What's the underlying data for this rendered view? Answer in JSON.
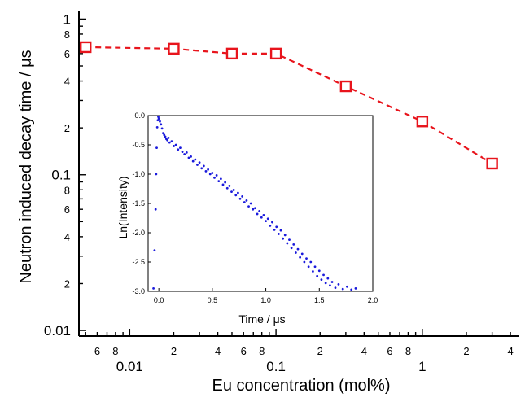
{
  "chart_data": [
    {
      "type": "line",
      "xlabel": "Eu concentration (mol%)",
      "ylabel": "Neutron induced decay time / μs",
      "xscale": "log",
      "yscale": "log",
      "xlim": [
        0.0045,
        4.6
      ],
      "ylim": [
        0.0092,
        1.12
      ],
      "x_major_ticks": [
        {
          "value": 0.01,
          "label": "0.01"
        },
        {
          "value": 0.1,
          "label": "0.1"
        },
        {
          "value": 1,
          "label": "1"
        }
      ],
      "x_minor_ticks": [
        {
          "value": 0.006,
          "label": "6"
        },
        {
          "value": 0.008,
          "label": "8"
        },
        {
          "value": 0.02,
          "label": "2"
        },
        {
          "value": 0.04,
          "label": "4"
        },
        {
          "value": 0.06,
          "label": "6"
        },
        {
          "value": 0.08,
          "label": "8"
        },
        {
          "value": 0.2,
          "label": "2"
        },
        {
          "value": 0.4,
          "label": "4"
        },
        {
          "value": 0.6,
          "label": "6"
        },
        {
          "value": 0.8,
          "label": "8"
        },
        {
          "value": 2,
          "label": "2"
        },
        {
          "value": 4,
          "label": "4"
        }
      ],
      "y_major_ticks": [
        {
          "value": 0.01,
          "label": "0.01"
        },
        {
          "value": 0.1,
          "label": "0.1"
        },
        {
          "value": 1,
          "label": "1"
        }
      ],
      "y_minor_ticks": [
        {
          "value": 0.02,
          "label": "2"
        },
        {
          "value": 0.04,
          "label": "4"
        },
        {
          "value": 0.06,
          "label": "6"
        },
        {
          "value": 0.08,
          "label": "8"
        },
        {
          "value": 0.2,
          "label": "2"
        },
        {
          "value": 0.4,
          "label": "4"
        },
        {
          "value": 0.6,
          "label": "6"
        },
        {
          "value": 0.8,
          "label": "8"
        }
      ],
      "series": [
        {
          "x": [
            0.005,
            0.02,
            0.05,
            0.1,
            0.3,
            1.0,
            3.0
          ],
          "y": [
            0.66,
            0.645,
            0.6,
            0.6,
            0.37,
            0.22,
            0.118
          ],
          "color": "#e8141c",
          "marker": "square-open",
          "line": "dashed"
        }
      ],
      "grid": false
    },
    {
      "type": "scatter",
      "inset": true,
      "xlabel": "Time / μs",
      "ylabel": "Ln(Intensity)",
      "xlim": [
        -0.1,
        2.0
      ],
      "ylim": [
        -3.0,
        0.0
      ],
      "x_ticks": [
        {
          "value": 0,
          "label": "0.0"
        },
        {
          "value": 0.5,
          "label": "0.5"
        },
        {
          "value": 1,
          "label": "1.0"
        },
        {
          "value": 1.5,
          "label": "1.5"
        },
        {
          "value": 2,
          "label": "2.0"
        }
      ],
      "y_ticks": [
        {
          "value": 0,
          "label": "0.0"
        },
        {
          "value": -0.5,
          "label": "-0.5"
        },
        {
          "value": -1,
          "label": "-1.0"
        },
        {
          "value": -1.5,
          "label": "-1.5"
        },
        {
          "value": -2,
          "label": "-2.0"
        },
        {
          "value": -2.5,
          "label": "-2.5"
        },
        {
          "value": -3,
          "label": "-3.0"
        }
      ],
      "series": [
        {
          "color": "#1a1adc",
          "marker": "dot",
          "points": [
            [
              -0.05,
              -2.95
            ],
            [
              -0.04,
              -2.3
            ],
            [
              -0.03,
              -1.6
            ],
            [
              -0.025,
              -1.0
            ],
            [
              -0.02,
              -0.55
            ],
            [
              -0.015,
              -0.2
            ],
            [
              -0.01,
              -0.08
            ],
            [
              -0.005,
              -0.02
            ],
            [
              0.0,
              -0.05
            ],
            [
              0.01,
              -0.1
            ],
            [
              0.02,
              -0.15
            ],
            [
              0.03,
              -0.22
            ],
            [
              0.04,
              -0.3
            ],
            [
              0.05,
              -0.33
            ],
            [
              0.06,
              -0.36
            ],
            [
              0.07,
              -0.4
            ],
            [
              0.08,
              -0.42
            ],
            [
              0.09,
              -0.38
            ],
            [
              0.1,
              -0.46
            ],
            [
              0.12,
              -0.44
            ],
            [
              0.14,
              -0.52
            ],
            [
              0.16,
              -0.5
            ],
            [
              0.18,
              -0.58
            ],
            [
              0.2,
              -0.55
            ],
            [
              0.22,
              -0.62
            ],
            [
              0.24,
              -0.66
            ],
            [
              0.26,
              -0.63
            ],
            [
              0.28,
              -0.72
            ],
            [
              0.3,
              -0.7
            ],
            [
              0.32,
              -0.78
            ],
            [
              0.34,
              -0.75
            ],
            [
              0.36,
              -0.84
            ],
            [
              0.38,
              -0.8
            ],
            [
              0.4,
              -0.9
            ],
            [
              0.42,
              -0.86
            ],
            [
              0.44,
              -0.95
            ],
            [
              0.46,
              -0.92
            ],
            [
              0.48,
              -1.0
            ],
            [
              0.5,
              -0.98
            ],
            [
              0.52,
              -1.06
            ],
            [
              0.54,
              -1.02
            ],
            [
              0.56,
              -1.12
            ],
            [
              0.58,
              -1.08
            ],
            [
              0.6,
              -1.18
            ],
            [
              0.62,
              -1.14
            ],
            [
              0.64,
              -1.24
            ],
            [
              0.66,
              -1.2
            ],
            [
              0.68,
              -1.3
            ],
            [
              0.7,
              -1.27
            ],
            [
              0.72,
              -1.36
            ],
            [
              0.74,
              -1.32
            ],
            [
              0.76,
              -1.42
            ],
            [
              0.78,
              -1.38
            ],
            [
              0.8,
              -1.48
            ],
            [
              0.82,
              -1.45
            ],
            [
              0.84,
              -1.55
            ],
            [
              0.86,
              -1.5
            ],
            [
              0.88,
              -1.6
            ],
            [
              0.9,
              -1.58
            ],
            [
              0.92,
              -1.68
            ],
            [
              0.94,
              -1.63
            ],
            [
              0.96,
              -1.74
            ],
            [
              0.98,
              -1.7
            ],
            [
              1.0,
              -1.8
            ],
            [
              1.02,
              -1.76
            ],
            [
              1.04,
              -1.88
            ],
            [
              1.06,
              -1.82
            ],
            [
              1.08,
              -1.95
            ],
            [
              1.1,
              -1.9
            ],
            [
              1.12,
              -2.02
            ],
            [
              1.14,
              -1.96
            ],
            [
              1.16,
              -2.1
            ],
            [
              1.18,
              -2.04
            ],
            [
              1.2,
              -2.18
            ],
            [
              1.22,
              -2.12
            ],
            [
              1.24,
              -2.26
            ],
            [
              1.26,
              -2.2
            ],
            [
              1.28,
              -2.34
            ],
            [
              1.3,
              -2.28
            ],
            [
              1.32,
              -2.42
            ],
            [
              1.34,
              -2.36
            ],
            [
              1.36,
              -2.5
            ],
            [
              1.38,
              -2.44
            ],
            [
              1.4,
              -2.58
            ],
            [
              1.42,
              -2.5
            ],
            [
              1.44,
              -2.66
            ],
            [
              1.46,
              -2.58
            ],
            [
              1.48,
              -2.74
            ],
            [
              1.5,
              -2.65
            ],
            [
              1.52,
              -2.8
            ],
            [
              1.54,
              -2.72
            ],
            [
              1.56,
              -2.86
            ],
            [
              1.58,
              -2.78
            ],
            [
              1.6,
              -2.9
            ],
            [
              1.62,
              -2.84
            ],
            [
              1.65,
              -2.94
            ],
            [
              1.68,
              -2.88
            ],
            [
              1.72,
              -2.96
            ],
            [
              1.76,
              -2.92
            ],
            [
              1.8,
              -2.97
            ],
            [
              1.84,
              -2.95
            ]
          ]
        }
      ],
      "grid": false
    }
  ]
}
